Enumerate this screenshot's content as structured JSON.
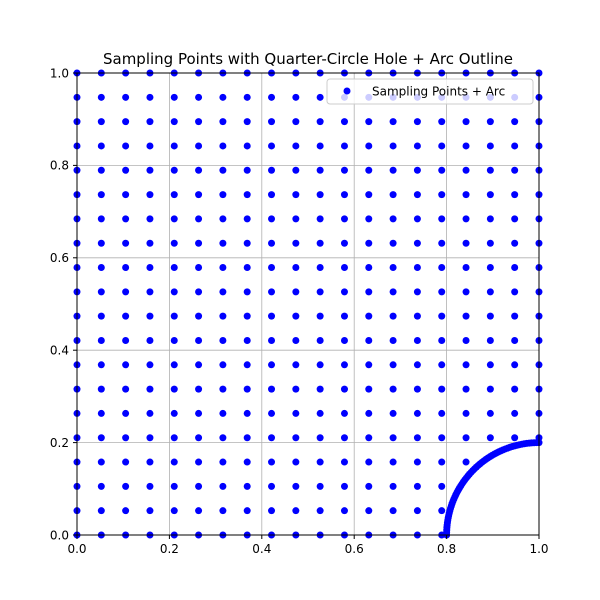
{
  "chart_data": {
    "type": "scatter",
    "title": "Sampling Points with Quarter-Circle Hole + Arc Outline",
    "xlabel": "",
    "ylabel": "",
    "xlim": [
      0.0,
      1.0
    ],
    "ylim": [
      0.0,
      1.0
    ],
    "x_ticks": [
      0.0,
      0.2,
      0.4,
      0.6,
      0.8,
      1.0
    ],
    "y_ticks": [
      0.0,
      0.2,
      0.4,
      0.6,
      0.8,
      1.0
    ],
    "x_tick_labels": [
      "0.0",
      "0.2",
      "0.4",
      "0.6",
      "0.8",
      "1.0"
    ],
    "y_tick_labels": [
      "0.0",
      "0.2",
      "0.4",
      "0.6",
      "0.8",
      "1.0"
    ],
    "grid": true,
    "legend": {
      "placement": "upper-right",
      "entries": [
        "Sampling Points + Arc"
      ]
    },
    "series": [
      {
        "name": "Sampling Points + Arc",
        "color": "#0000ff",
        "grid_spacing": 0.05263,
        "grid_count": 20,
        "hole": {
          "center": [
            1.0,
            0.0
          ],
          "radius": 0.2
        },
        "arc": {
          "center": [
            1.0,
            0.0
          ],
          "radius": 0.2,
          "start_angle_deg": 90,
          "end_angle_deg": 180,
          "points": 60
        }
      }
    ]
  }
}
